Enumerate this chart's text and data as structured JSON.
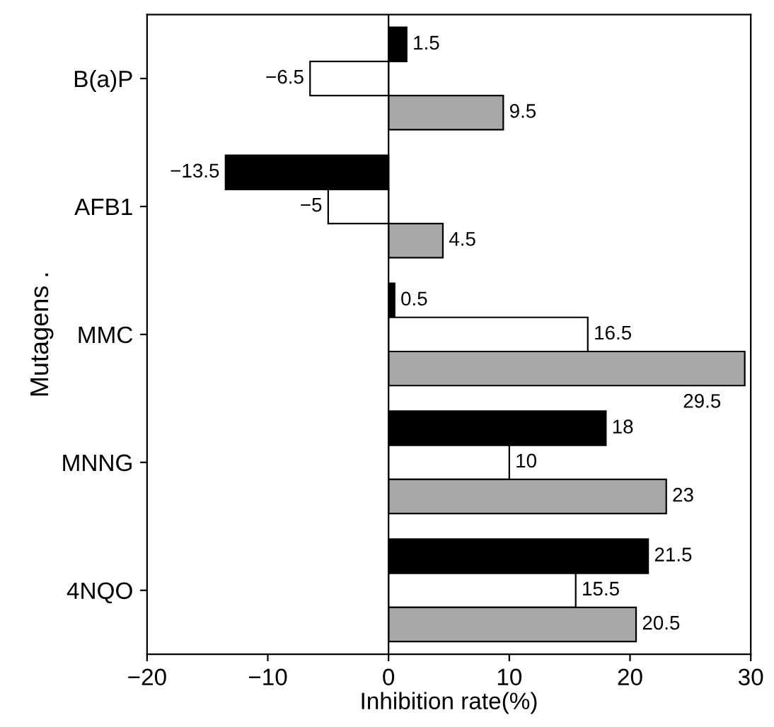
{
  "chart_data": {
    "type": "bar",
    "orientation": "horizontal",
    "xlabel": "Inhibition rate(%)",
    "ylabel": "Mutagens .",
    "categories": [
      "B(a)P",
      "AFB1",
      "MMC",
      "MNNG",
      "4NQO"
    ],
    "series": [
      {
        "color": "#000000",
        "values": [
          1.5,
          -13.5,
          0.5,
          18,
          21.5
        ]
      },
      {
        "color": "#ffffff",
        "values": [
          -6.5,
          -5,
          16.5,
          10,
          15.5
        ]
      },
      {
        "color": "#a8a8a8",
        "values": [
          9.5,
          4.5,
          29.5,
          23,
          20.5
        ]
      }
    ],
    "xlim": [
      -20,
      30
    ],
    "xticks": [
      -20,
      -10,
      0,
      10,
      20,
      30
    ],
    "ref_lines": [
      {
        "axis": "x",
        "value": 0,
        "color": "#000000"
      }
    ],
    "data_labels": true,
    "grid": false,
    "legend": false
  }
}
